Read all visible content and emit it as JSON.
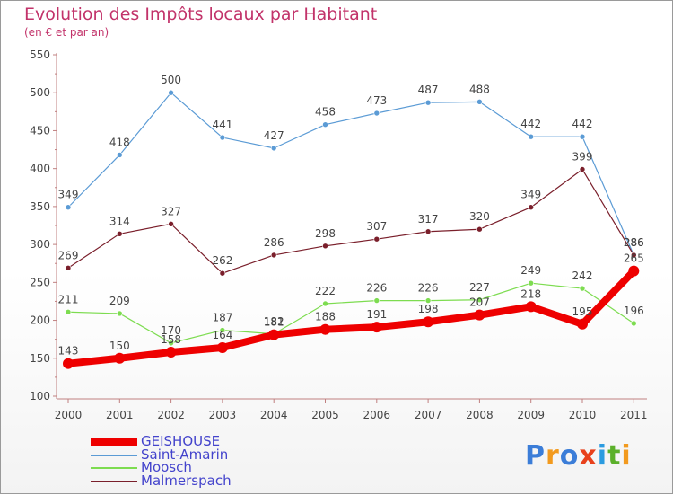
{
  "header": {
    "title": "Evolution des Impôts locaux par Habitant",
    "subtitle": "(en € et par an)"
  },
  "chart_data": {
    "type": "line",
    "title": "Evolution des Impôts locaux par Habitant",
    "subtitle": "(en € et par an)",
    "xlabel": "",
    "ylabel": "",
    "x": [
      "2000",
      "2001",
      "2002",
      "2003",
      "2004",
      "2005",
      "2006",
      "2007",
      "2008",
      "2009",
      "2010",
      "2011"
    ],
    "ylim": [
      100,
      550
    ],
    "yticks": [
      "100",
      "150",
      "200",
      "250",
      "300",
      "350",
      "400",
      "450",
      "500",
      "550"
    ],
    "grid": false,
    "legend_position": "bottom-left",
    "series": [
      {
        "name": "GEISHOUSE",
        "color": "#ee0000",
        "values": [
          143,
          150,
          158,
          164,
          181,
          188,
          191,
          198,
          207,
          218,
          195,
          265
        ],
        "labels": [
          "143",
          "150",
          "158",
          "164",
          "181",
          "188",
          "191",
          "198",
          "207",
          "218",
          "195",
          "265"
        ]
      },
      {
        "name": "Saint-Amarin",
        "color": "#5b9bd5",
        "values": [
          349,
          418,
          500,
          441,
          427,
          458,
          473,
          487,
          488,
          442,
          442,
          286
        ],
        "labels": [
          "349",
          "418",
          "500",
          "441",
          "427",
          "458",
          "473",
          "487",
          "488",
          "442",
          "442",
          "286"
        ]
      },
      {
        "name": "Moosch",
        "color": "#7ddc50",
        "values": [
          211,
          209,
          170,
          187,
          182,
          222,
          226,
          226,
          227,
          249,
          242,
          196
        ],
        "labels": [
          "211",
          "209",
          "170",
          "187",
          "182",
          "222",
          "226",
          "226",
          "227",
          "249",
          "242",
          "196"
        ]
      },
      {
        "name": "Malmerspach",
        "color": "#7a1f2b",
        "values": [
          269,
          314,
          327,
          262,
          286,
          298,
          307,
          317,
          320,
          349,
          399,
          286
        ],
        "labels": [
          "269",
          "314",
          "327",
          "262",
          "286",
          "298",
          "307",
          "317",
          "320",
          "349",
          "399",
          "286"
        ]
      }
    ]
  },
  "legend": {
    "items": [
      "GEISHOUSE",
      "Saint-Amarin",
      "Moosch",
      "Malmerspach"
    ]
  },
  "logo": {
    "letters": [
      "P",
      "r",
      "o",
      "x",
      "i",
      "t",
      "i"
    ],
    "colors": [
      "#3b7dd8",
      "#f29a1e",
      "#3b7dd8",
      "#e8411c",
      "#2b9be0",
      "#5bb02a",
      "#f29a1e"
    ]
  }
}
